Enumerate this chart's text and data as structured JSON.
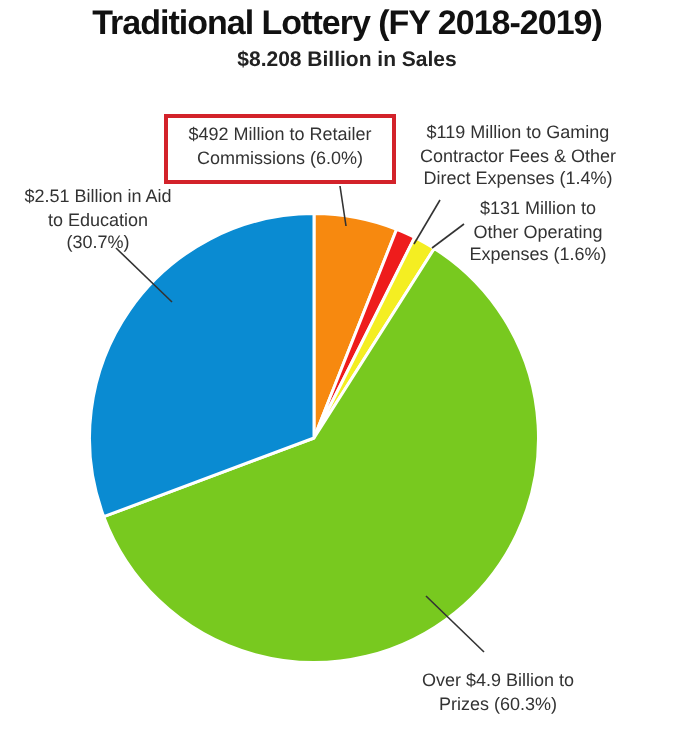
{
  "chart_data": {
    "type": "pie",
    "title": "Traditional Lottery (FY 2018-2019)",
    "subtitle": "$8.208 Billion in Sales",
    "categories": [
      "$492 Million to Retailer Commissions (6.0%)",
      "$119 Million to Gaming Contractor Fees & Other Direct Expenses (1.4%)",
      "$131 Million to Other Operating Expenses (1.6%)",
      "Over $4.9 Billion to Prizes (60.3%)",
      "$2.51 Billion in Aid to Education (30.7%)"
    ],
    "values": [
      6.0,
      1.4,
      1.6,
      60.3,
      30.7
    ],
    "colors": [
      "#f7890f",
      "#ee1c1c",
      "#f4ee22",
      "#78c91f",
      "#0a8bd2"
    ],
    "legend": false
  }
}
